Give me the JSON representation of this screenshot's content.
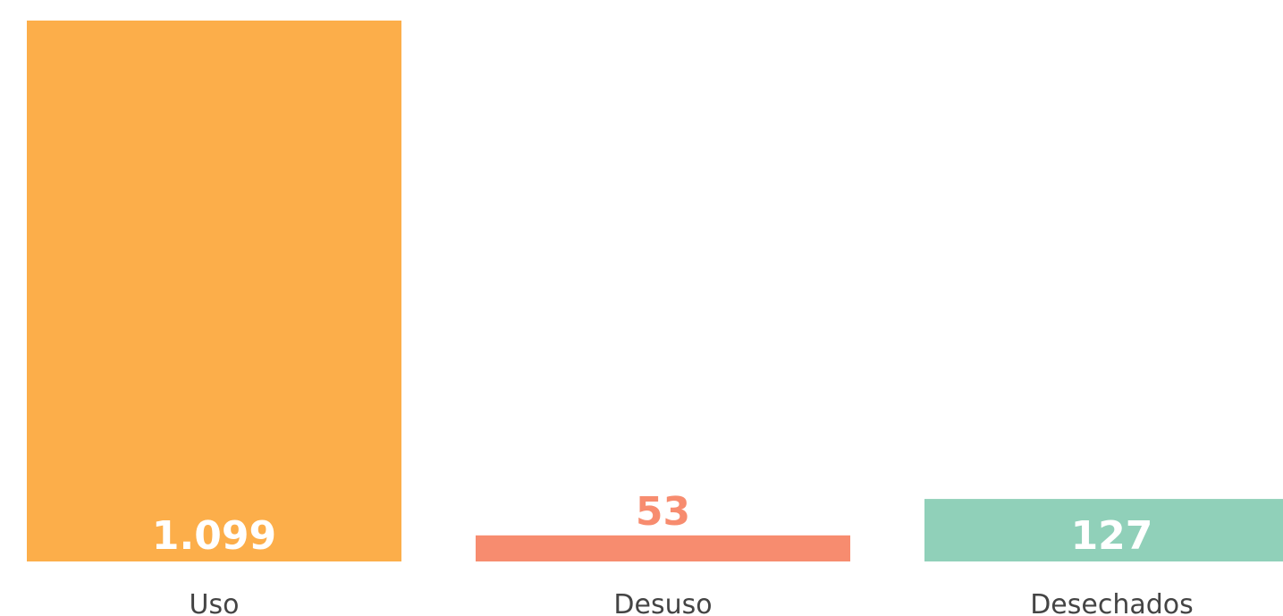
{
  "chart_data": {
    "type": "bar",
    "categories": [
      "Uso",
      "Desuso",
      "Desechados"
    ],
    "values": [
      1099,
      53,
      127
    ],
    "value_labels": [
      "1.099",
      "53",
      "127"
    ],
    "colors": [
      "#fcae4a",
      "#f78c6f",
      "#90d0b9"
    ]
  }
}
